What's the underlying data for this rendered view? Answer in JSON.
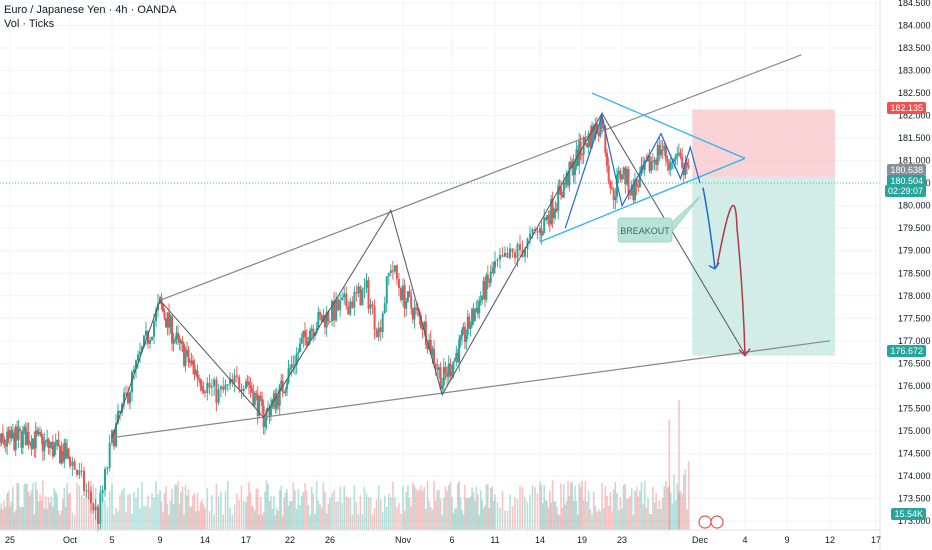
{
  "header": {
    "title": "Euro / Japanese Yen · 4h · OANDA",
    "indicator": "Vol · Ticks"
  },
  "colors": {
    "up": "#26a69a",
    "down": "#ef5350",
    "trend": "#888888",
    "triangle": "#29b6f6",
    "short_arrow": "#1e6bd6",
    "target_arrow": "#b03a48",
    "stop_zone": "#f8c8cc",
    "target_zone": "#c7e9e1"
  },
  "chart_data": {
    "type": "candlestick",
    "symbol": "EUR/JPY",
    "interval": "4h",
    "ylim": [
      172.8,
      184.55
    ],
    "y_ticks": [
      "184.500",
      "184.000",
      "183.500",
      "183.000",
      "182.500",
      "182.000",
      "181.500",
      "181.000",
      "180.500",
      "180.000",
      "179.500",
      "179.000",
      "178.500",
      "178.000",
      "177.500",
      "177.000",
      "176.500",
      "176.000",
      "175.500",
      "175.000",
      "174.500",
      "174.000",
      "173.500",
      "173.000"
    ],
    "x_ticks": [
      "25",
      "Oct",
      "5",
      "9",
      "14",
      "17",
      "22",
      "26",
      "Nov",
      "6",
      "11",
      "14",
      "19",
      "23",
      "Dec",
      "4",
      "9",
      "12",
      "17"
    ],
    "price_labels": {
      "stop": "182.135",
      "entry": "180.638",
      "current": "180.504",
      "countdown": "02:29:07",
      "target": "176.672",
      "volume": "15.54K"
    },
    "annotation": "BREAKOUT",
    "anchors": [
      {
        "date": "2023-09-22",
        "close": 174.6
      },
      {
        "date": "2023-09-27",
        "close": 174.9
      },
      {
        "date": "2023-10-02",
        "close": 174.4
      },
      {
        "date": "2023-10-04",
        "close": 173.1
      },
      {
        "date": "2023-10-05",
        "close": 174.8
      },
      {
        "date": "2023-10-07",
        "close": 176.4
      },
      {
        "date": "2023-10-09",
        "close": 177.8
      },
      {
        "date": "2023-10-11",
        "close": 176.9
      },
      {
        "date": "2023-10-13",
        "close": 176.3
      },
      {
        "date": "2023-10-15",
        "close": 175.8
      },
      {
        "date": "2023-10-17",
        "close": 176.2
      },
      {
        "date": "2023-10-19",
        "close": 175.3
      },
      {
        "date": "2023-10-21",
        "close": 175.9
      },
      {
        "date": "2023-10-24",
        "close": 177.3
      },
      {
        "date": "2023-10-26",
        "close": 177.6
      },
      {
        "date": "2023-10-29",
        "close": 178.1
      },
      {
        "date": "2023-10-30",
        "close": 177.2
      },
      {
        "date": "2023-10-31",
        "close": 178.7
      },
      {
        "date": "2023-11-01",
        "close": 178.0
      },
      {
        "date": "2023-11-03",
        "close": 177.4
      },
      {
        "date": "2023-11-05",
        "close": 176.1
      },
      {
        "date": "2023-11-07",
        "close": 176.9
      },
      {
        "date": "2023-11-09",
        "close": 177.8
      },
      {
        "date": "2023-11-11",
        "close": 178.6
      },
      {
        "date": "2023-11-13",
        "close": 179.1
      },
      {
        "date": "2023-11-15",
        "close": 179.8
      },
      {
        "date": "2023-11-17",
        "close": 180.5
      },
      {
        "date": "2023-11-19",
        "close": 181.3
      },
      {
        "date": "2023-11-21",
        "close": 181.9
      },
      {
        "date": "2023-11-22",
        "close": 180.2
      },
      {
        "date": "2023-11-23",
        "close": 180.8
      },
      {
        "date": "2023-11-24",
        "close": 180.3
      },
      {
        "date": "2023-11-27",
        "close": 181.3
      },
      {
        "date": "2023-11-28",
        "close": 180.9
      },
      {
        "date": "2023-11-29",
        "close": 181.0
      },
      {
        "date": "2023-11-30",
        "close": 180.5
      }
    ]
  }
}
